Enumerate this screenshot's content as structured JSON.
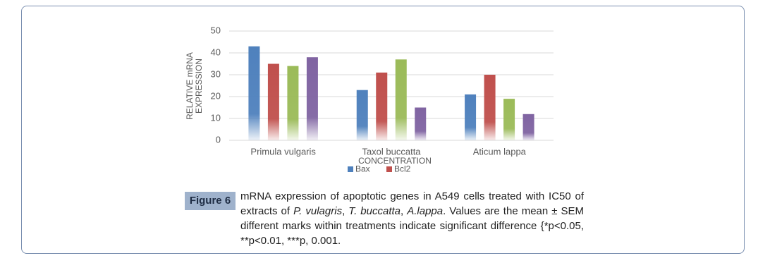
{
  "chart_data": {
    "type": "bar",
    "categories": [
      "Primula vulgaris",
      "Taxol buccatta",
      "Aticum lappa"
    ],
    "series": [
      {
        "name": "Bax",
        "color": "#4f81bd",
        "values": [
          43,
          23,
          21
        ]
      },
      {
        "name": "Bcl2",
        "color": "#c0504d",
        "values": [
          35,
          31,
          30
        ]
      },
      {
        "color": "#9bbb59",
        "values": [
          34,
          37,
          19
        ]
      },
      {
        "color": "#8064a2",
        "values": [
          38,
          15,
          12
        ]
      }
    ],
    "ylabel": "RELATIVE mRNA EXPRESSION",
    "xlabel": "CONCENTRATION",
    "ylim": [
      0,
      50
    ],
    "yticks": [
      0,
      10,
      20,
      30,
      40,
      50
    ],
    "grid": true
  },
  "caption": {
    "label": "Figure 6",
    "runs": [
      {
        "text": "mRNA expression of apoptotic genes in A549 cells treated with IC50 of extracts of "
      },
      {
        "text": "P. vulagris",
        "italic": true
      },
      {
        "text": ", "
      },
      {
        "text": "T. buccatta",
        "italic": true
      },
      {
        "text": ", "
      },
      {
        "text": "A.lappa",
        "italic": true
      },
      {
        "text": ". Values are the mean ± SEM different marks within treatments indicate significant difference {*p<0.05, **p<0.01, ***p, 0.001."
      }
    ]
  }
}
